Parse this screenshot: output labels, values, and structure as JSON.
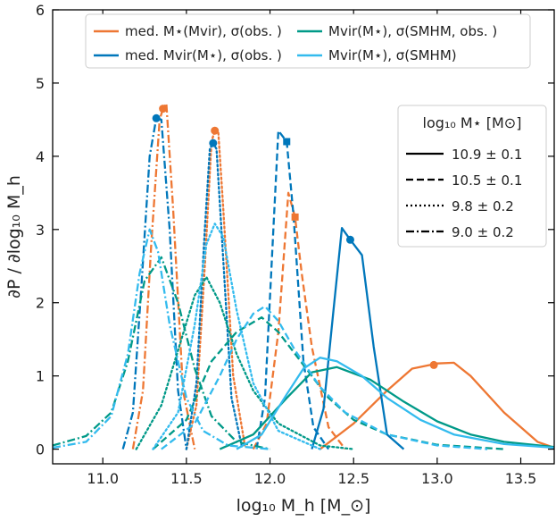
{
  "chart_data": {
    "type": "line",
    "xlabel": "log₁₀ M_h [M_⊙]",
    "ylabel": "∂P / ∂log₁₀ M_h",
    "xlim": [
      10.7,
      13.7
    ],
    "ylim": [
      -0.2,
      6.0
    ],
    "x_ticks": [
      11.0,
      11.5,
      12.0,
      12.5,
      13.0,
      13.5
    ],
    "x_tick_labels": [
      "11.0",
      "11.5",
      "12.0",
      "12.5",
      "13.0",
      "13.5"
    ],
    "y_ticks": [
      0,
      1,
      2,
      3,
      4,
      5,
      6
    ],
    "y_tick_labels": [
      "0",
      "1",
      "2",
      "3",
      "4",
      "5",
      "6"
    ],
    "grid": false,
    "legend_top": {
      "placement": "top-center",
      "entries": [
        {
          "label": "med. M⋆(Mvir), σ(obs. )",
          "color": "#EE7733"
        },
        {
          "label": "med. Mvir(M⋆), σ(obs. )",
          "color": "#0077BB"
        },
        {
          "label": "Mvir(M⋆), σ(SMHM, obs. )",
          "color": "#009988"
        },
        {
          "label": "Mvir(M⋆), σ(SMHM)",
          "color": "#33BBEE"
        }
      ]
    },
    "legend_mass": {
      "placement": "right",
      "title": "log₁₀ M⋆ [M⊙]",
      "entries": [
        {
          "label": "10.9 ± 0.1",
          "style": "solid"
        },
        {
          "label": "10.5 ± 0.1",
          "style": "dashed"
        },
        {
          "label": "9.8 ± 0.2",
          "style": "dotted"
        },
        {
          "label": "9.0 ± 0.2",
          "style": "dashdot"
        }
      ]
    },
    "series": [
      {
        "method": "orange",
        "color": "#EE7733",
        "style": "solid",
        "marker": [
          12.98,
          1.15
        ],
        "x": [
          12.3,
          12.5,
          12.7,
          12.85,
          13.0,
          13.1,
          13.2,
          13.4,
          13.6,
          13.7
        ],
        "y": [
          0.0,
          0.35,
          0.8,
          1.1,
          1.17,
          1.18,
          1.0,
          0.5,
          0.1,
          0.02
        ]
      },
      {
        "method": "orange",
        "color": "#EE7733",
        "style": "dashed",
        "marker": [
          12.15,
          3.17
        ],
        "x": [
          11.9,
          11.98,
          12.05,
          12.11,
          12.15,
          12.19,
          12.25,
          12.35,
          12.45
        ],
        "y": [
          0.0,
          0.35,
          1.6,
          3.5,
          3.17,
          2.4,
          1.4,
          0.3,
          0.0
        ]
      },
      {
        "method": "orange",
        "color": "#EE7733",
        "style": "dotted",
        "marker": [
          11.67,
          4.35
        ],
        "x": [
          11.5,
          11.56,
          11.61,
          11.65,
          11.67,
          11.69,
          11.72,
          11.78,
          11.85
        ],
        "y": [
          0.0,
          0.6,
          2.5,
          4.2,
          4.35,
          4.35,
          3.3,
          1.0,
          0.05
        ]
      },
      {
        "method": "orange",
        "color": "#EE7733",
        "style": "dashdot",
        "marker": [
          11.36,
          4.65
        ],
        "x": [
          11.18,
          11.24,
          11.29,
          11.34,
          11.36,
          11.38,
          11.42,
          11.48,
          11.55
        ],
        "y": [
          0.0,
          0.8,
          2.8,
          4.5,
          4.65,
          4.72,
          3.3,
          0.8,
          0.0
        ]
      },
      {
        "method": "dark-blue",
        "color": "#0077BB",
        "style": "solid",
        "marker": [
          12.48,
          2.86
        ],
        "x": [
          12.25,
          12.32,
          12.38,
          12.43,
          12.48,
          12.55,
          12.62,
          12.7,
          12.8
        ],
        "y": [
          0.0,
          0.55,
          1.9,
          3.02,
          2.86,
          2.65,
          1.4,
          0.2,
          0.0
        ]
      },
      {
        "method": "dark-blue",
        "color": "#0077BB",
        "style": "dashed",
        "marker": [
          12.1,
          4.2
        ],
        "x": [
          11.92,
          11.97,
          12.02,
          12.05,
          12.1,
          12.14,
          12.2,
          12.26,
          12.35
        ],
        "y": [
          0.0,
          0.7,
          3.0,
          4.35,
          4.2,
          3.2,
          1.2,
          0.3,
          0.0
        ]
      },
      {
        "method": "dark-blue",
        "color": "#0077BB",
        "style": "dotted",
        "marker": [
          11.66,
          4.18
        ],
        "x": [
          11.5,
          11.56,
          11.61,
          11.64,
          11.66,
          11.68,
          11.72,
          11.77,
          11.83
        ],
        "y": [
          0.0,
          0.9,
          3.0,
          4.1,
          4.18,
          4.1,
          2.6,
          0.7,
          0.05
        ]
      },
      {
        "method": "dark-blue",
        "color": "#0077BB",
        "style": "dashdot",
        "marker": [
          11.32,
          4.52
        ],
        "x": [
          11.12,
          11.18,
          11.23,
          11.28,
          11.32,
          11.35,
          11.4,
          11.45,
          11.5
        ],
        "y": [
          0.0,
          0.5,
          2.2,
          4.0,
          4.52,
          4.5,
          3.0,
          0.8,
          0.0
        ]
      },
      {
        "method": "teal",
        "color": "#009988",
        "style": "solid",
        "x": [
          11.7,
          11.9,
          12.1,
          12.25,
          12.4,
          12.6,
          12.8,
          13.0,
          13.2,
          13.4,
          13.7
        ],
        "y": [
          0.0,
          0.2,
          0.7,
          1.05,
          1.12,
          0.95,
          0.65,
          0.38,
          0.2,
          0.1,
          0.03
        ]
      },
      {
        "method": "teal",
        "color": "#009988",
        "style": "dashed",
        "x": [
          11.3,
          11.5,
          11.65,
          11.8,
          11.95,
          12.05,
          12.2,
          12.35,
          12.5,
          12.7,
          13.0,
          13.4
        ],
        "y": [
          0.0,
          0.4,
          1.2,
          1.6,
          1.8,
          1.6,
          1.15,
          0.7,
          0.4,
          0.2,
          0.06,
          0.0
        ]
      },
      {
        "method": "teal",
        "color": "#009988",
        "style": "dotted",
        "x": [
          11.2,
          11.35,
          11.45,
          11.55,
          11.62,
          11.7,
          11.8,
          11.9,
          12.05,
          12.3,
          12.5
        ],
        "y": [
          0.0,
          0.6,
          1.35,
          2.1,
          2.35,
          2.0,
          1.3,
          0.8,
          0.35,
          0.05,
          0.0
        ]
      },
      {
        "method": "teal",
        "color": "#009988",
        "style": "dashdot",
        "x": [
          10.7,
          10.9,
          11.05,
          11.15,
          11.25,
          11.35,
          11.45,
          11.55,
          11.65,
          11.8,
          12.0
        ],
        "y": [
          0.05,
          0.18,
          0.5,
          1.2,
          2.3,
          2.62,
          2.0,
          1.1,
          0.45,
          0.1,
          0.0
        ]
      },
      {
        "method": "light-blue",
        "color": "#33BBEE",
        "style": "solid",
        "x": [
          11.8,
          11.95,
          12.1,
          12.2,
          12.3,
          12.4,
          12.55,
          12.7,
          12.9,
          13.1,
          13.4,
          13.7
        ],
        "y": [
          0.0,
          0.2,
          0.75,
          1.1,
          1.25,
          1.2,
          1.0,
          0.7,
          0.4,
          0.2,
          0.07,
          0.02
        ]
      },
      {
        "method": "light-blue",
        "color": "#33BBEE",
        "style": "dashed",
        "x": [
          11.35,
          11.55,
          11.7,
          11.8,
          11.9,
          11.97,
          12.05,
          12.15,
          12.3,
          12.45,
          12.7,
          13.0,
          13.3
        ],
        "y": [
          0.0,
          0.35,
          1.0,
          1.5,
          1.85,
          1.95,
          1.75,
          1.35,
          0.85,
          0.5,
          0.2,
          0.05,
          0.0
        ]
      },
      {
        "method": "light-blue",
        "color": "#33BBEE",
        "style": "dotted",
        "x": [
          11.3,
          11.45,
          11.55,
          11.62,
          11.67,
          11.72,
          11.8,
          11.9,
          12.05,
          12.3
        ],
        "y": [
          0.0,
          0.5,
          1.7,
          2.8,
          3.08,
          2.9,
          1.9,
          0.9,
          0.25,
          0.0
        ]
      },
      {
        "method": "light-blue",
        "color": "#33BBEE",
        "style": "dashdot",
        "x": [
          10.7,
          10.9,
          11.05,
          11.15,
          11.22,
          11.28,
          11.33,
          11.4,
          11.5,
          11.6,
          11.75,
          12.0
        ],
        "y": [
          0.02,
          0.1,
          0.45,
          1.3,
          2.4,
          3.0,
          2.7,
          1.7,
          0.7,
          0.25,
          0.05,
          0.0
        ]
      }
    ]
  }
}
